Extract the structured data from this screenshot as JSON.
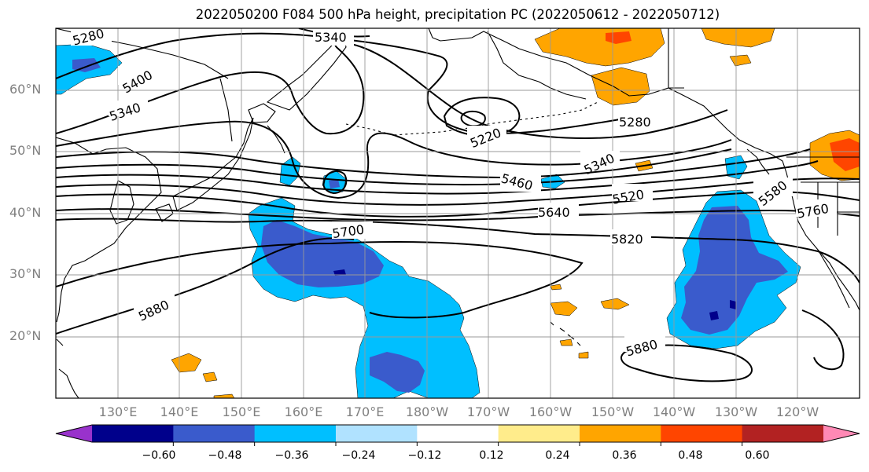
{
  "title": "2022050200 F084 500 hPa height, precipitation PC (2022050612 - 2022050712)",
  "map": {
    "region": "North Pacific",
    "projection": "equirectangular",
    "lon_range": [
      120,
      250
    ],
    "lat_range": [
      10,
      70
    ],
    "grid": true,
    "coastlines": true,
    "lat_labels": [
      "60°N",
      "50°N",
      "40°N",
      "30°N",
      "20°N"
    ],
    "lon_labels": [
      "130°E",
      "140°E",
      "150°E",
      "160°E",
      "170°E",
      "180°W",
      "170°W",
      "160°W",
      "150°W",
      "140°W",
      "130°W",
      "120°W"
    ]
  },
  "contours": {
    "field": "500 hPa height",
    "color": "#000000",
    "labels": [
      "5280",
      "5340",
      "5400",
      "5340",
      "5220",
      "5280",
      "5340",
      "5460",
      "5520",
      "5580",
      "5760",
      "5640",
      "5700",
      "5820",
      "5880",
      "5880"
    ]
  },
  "shading": {
    "field": "precipitation PC",
    "colors": {
      "le_-0.60": "#9932CC",
      "-0.60_-0.48": "#00008B",
      "-0.48_-0.36": "#3A5BCC",
      "-0.36_-0.24": "#00BFFF",
      "-0.24_-0.12": "#B0E2FF",
      "-0.12_0.12": "#FFFFFF",
      "0.12_0.24": "#FFEC8B",
      "0.24_0.36": "#FFA500",
      "0.36_0.48": "#FF4500",
      "0.48_0.60": "#B22222",
      "ge_0.60": "#FF89B5"
    }
  },
  "colorbar": {
    "colors": [
      "#9932CC",
      "#00008B",
      "#3A5BCC",
      "#00BFFF",
      "#B0E2FF",
      "#FFFFFF",
      "#FFEC8B",
      "#FFA500",
      "#FF4500",
      "#B22222",
      "#FF89B5"
    ],
    "tick_labels": [
      "−0.60",
      "−0.48",
      "−0.36",
      "−0.24",
      "−0.12",
      "0.12",
      "0.24",
      "0.36",
      "0.48",
      "0.60"
    ]
  }
}
